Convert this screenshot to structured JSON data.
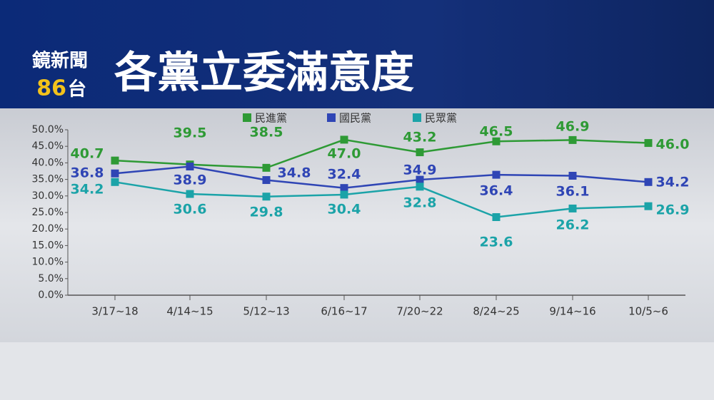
{
  "logo": {
    "name": "鏡新聞",
    "number": "86",
    "suffix": "台"
  },
  "chart_data": {
    "type": "line",
    "title": "各黨立委滿意度",
    "categories": [
      "3/17~18",
      "4/14~15",
      "5/12~13",
      "6/16~17",
      "7/20~22",
      "8/24~25",
      "9/14~16",
      "10/5~6"
    ],
    "series": [
      {
        "name": "民進黨",
        "color": "#2e9a35",
        "values": [
          40.7,
          39.5,
          38.5,
          47.0,
          43.2,
          46.5,
          46.9,
          46.0
        ],
        "value_labels": [
          "40.7",
          "39.5",
          "38.5",
          "47.0",
          "43.2",
          "46.5",
          "46.9",
          "46.0"
        ]
      },
      {
        "name": "國民黨",
        "color": "#2f45b5",
        "values": [
          36.8,
          38.9,
          34.8,
          32.4,
          34.9,
          36.4,
          36.1,
          34.2
        ]
      },
      {
        "name": "民眾黨",
        "color": "#1ba3a8",
        "values": [
          34.2,
          30.6,
          29.8,
          30.4,
          32.8,
          23.6,
          26.2,
          26.9
        ]
      }
    ],
    "ylim": [
      0,
      50
    ],
    "yticks": [
      {
        "value": 0,
        "label": "0.0%"
      },
      {
        "value": 5,
        "label": "5.0%"
      },
      {
        "value": 10,
        "label": "10.0%"
      },
      {
        "value": 15,
        "label": "15.0%"
      },
      {
        "value": 20,
        "label": "20.0%"
      },
      {
        "value": 25,
        "label": "25.0%"
      },
      {
        "value": 30,
        "label": "30.0%"
      },
      {
        "value": 35,
        "label": "35.0%"
      },
      {
        "value": 40,
        "label": "40.0%"
      },
      {
        "value": 45,
        "label": "45.0%"
      },
      {
        "value": 50,
        "label": "50.0%"
      }
    ],
    "grid": false,
    "legend": "top"
  }
}
